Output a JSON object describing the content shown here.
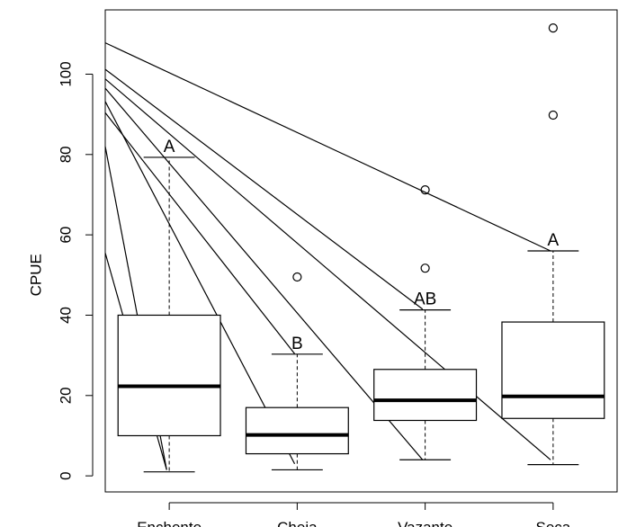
{
  "chart_data": {
    "type": "boxplot",
    "title": "",
    "xlabel": "",
    "ylabel": "CPUE",
    "categories": [
      "Enchente",
      "Cheia",
      "Vazante",
      "Seca"
    ],
    "y_ticks": [
      0,
      20,
      40,
      60,
      80,
      100
    ],
    "y_tick_labels": [
      "0",
      "20",
      "40",
      "60",
      "80",
      "100"
    ],
    "ylim": [
      -4,
      116
    ],
    "grid": false,
    "legend": "none",
    "boxes": [
      {
        "category": "Enchente",
        "whisker_low": 1,
        "q1": 10,
        "median": 22.3,
        "q3": 40,
        "whisker_high": 79.3,
        "outliers": [],
        "group_letter": "A"
      },
      {
        "category": "Cheia",
        "whisker_low": 1.5,
        "q1": 5.5,
        "median": 10.2,
        "q3": 17,
        "whisker_high": 30.3,
        "outliers": [
          49.5
        ],
        "group_letter": "B"
      },
      {
        "category": "Vazante",
        "whisker_low": 4,
        "q1": 13.8,
        "median": 18.8,
        "q3": 26.5,
        "whisker_high": 41.3,
        "outliers": [
          51.7,
          71.2
        ],
        "group_letter": "AB"
      },
      {
        "category": "Seca",
        "whisker_low": 2.8,
        "q1": 14.3,
        "median": 19.8,
        "q3": 38.3,
        "whisker_high": 56,
        "outliers": [
          89.8,
          111.5
        ],
        "group_letter": "A"
      }
    ],
    "reference_lines": [
      {
        "x": [
          0.5,
          3.98
        ],
        "y": [
          107.8,
          56
        ]
      },
      {
        "x": [
          0.5,
          2.98
        ],
        "y": [
          101.2,
          41.5
        ]
      },
      {
        "x": [
          0.5,
          3.98
        ],
        "y": [
          98.8,
          4
        ]
      },
      {
        "x": [
          0.5,
          2.98
        ],
        "y": [
          96.5,
          4
        ]
      },
      {
        "x": [
          0.5,
          1.98
        ],
        "y": [
          93.2,
          3
        ]
      },
      {
        "x": [
          0.5,
          1.98
        ],
        "y": [
          90.4,
          30.4
        ]
      },
      {
        "x": [
          0.5,
          0.98
        ],
        "y": [
          82.0,
          1.5
        ]
      },
      {
        "x": [
          0.5,
          0.98
        ],
        "y": [
          55.5,
          1.5
        ]
      }
    ],
    "colors": {
      "ink": "#000000",
      "box_fill": "#ffffff",
      "background": "#ffffff"
    }
  }
}
